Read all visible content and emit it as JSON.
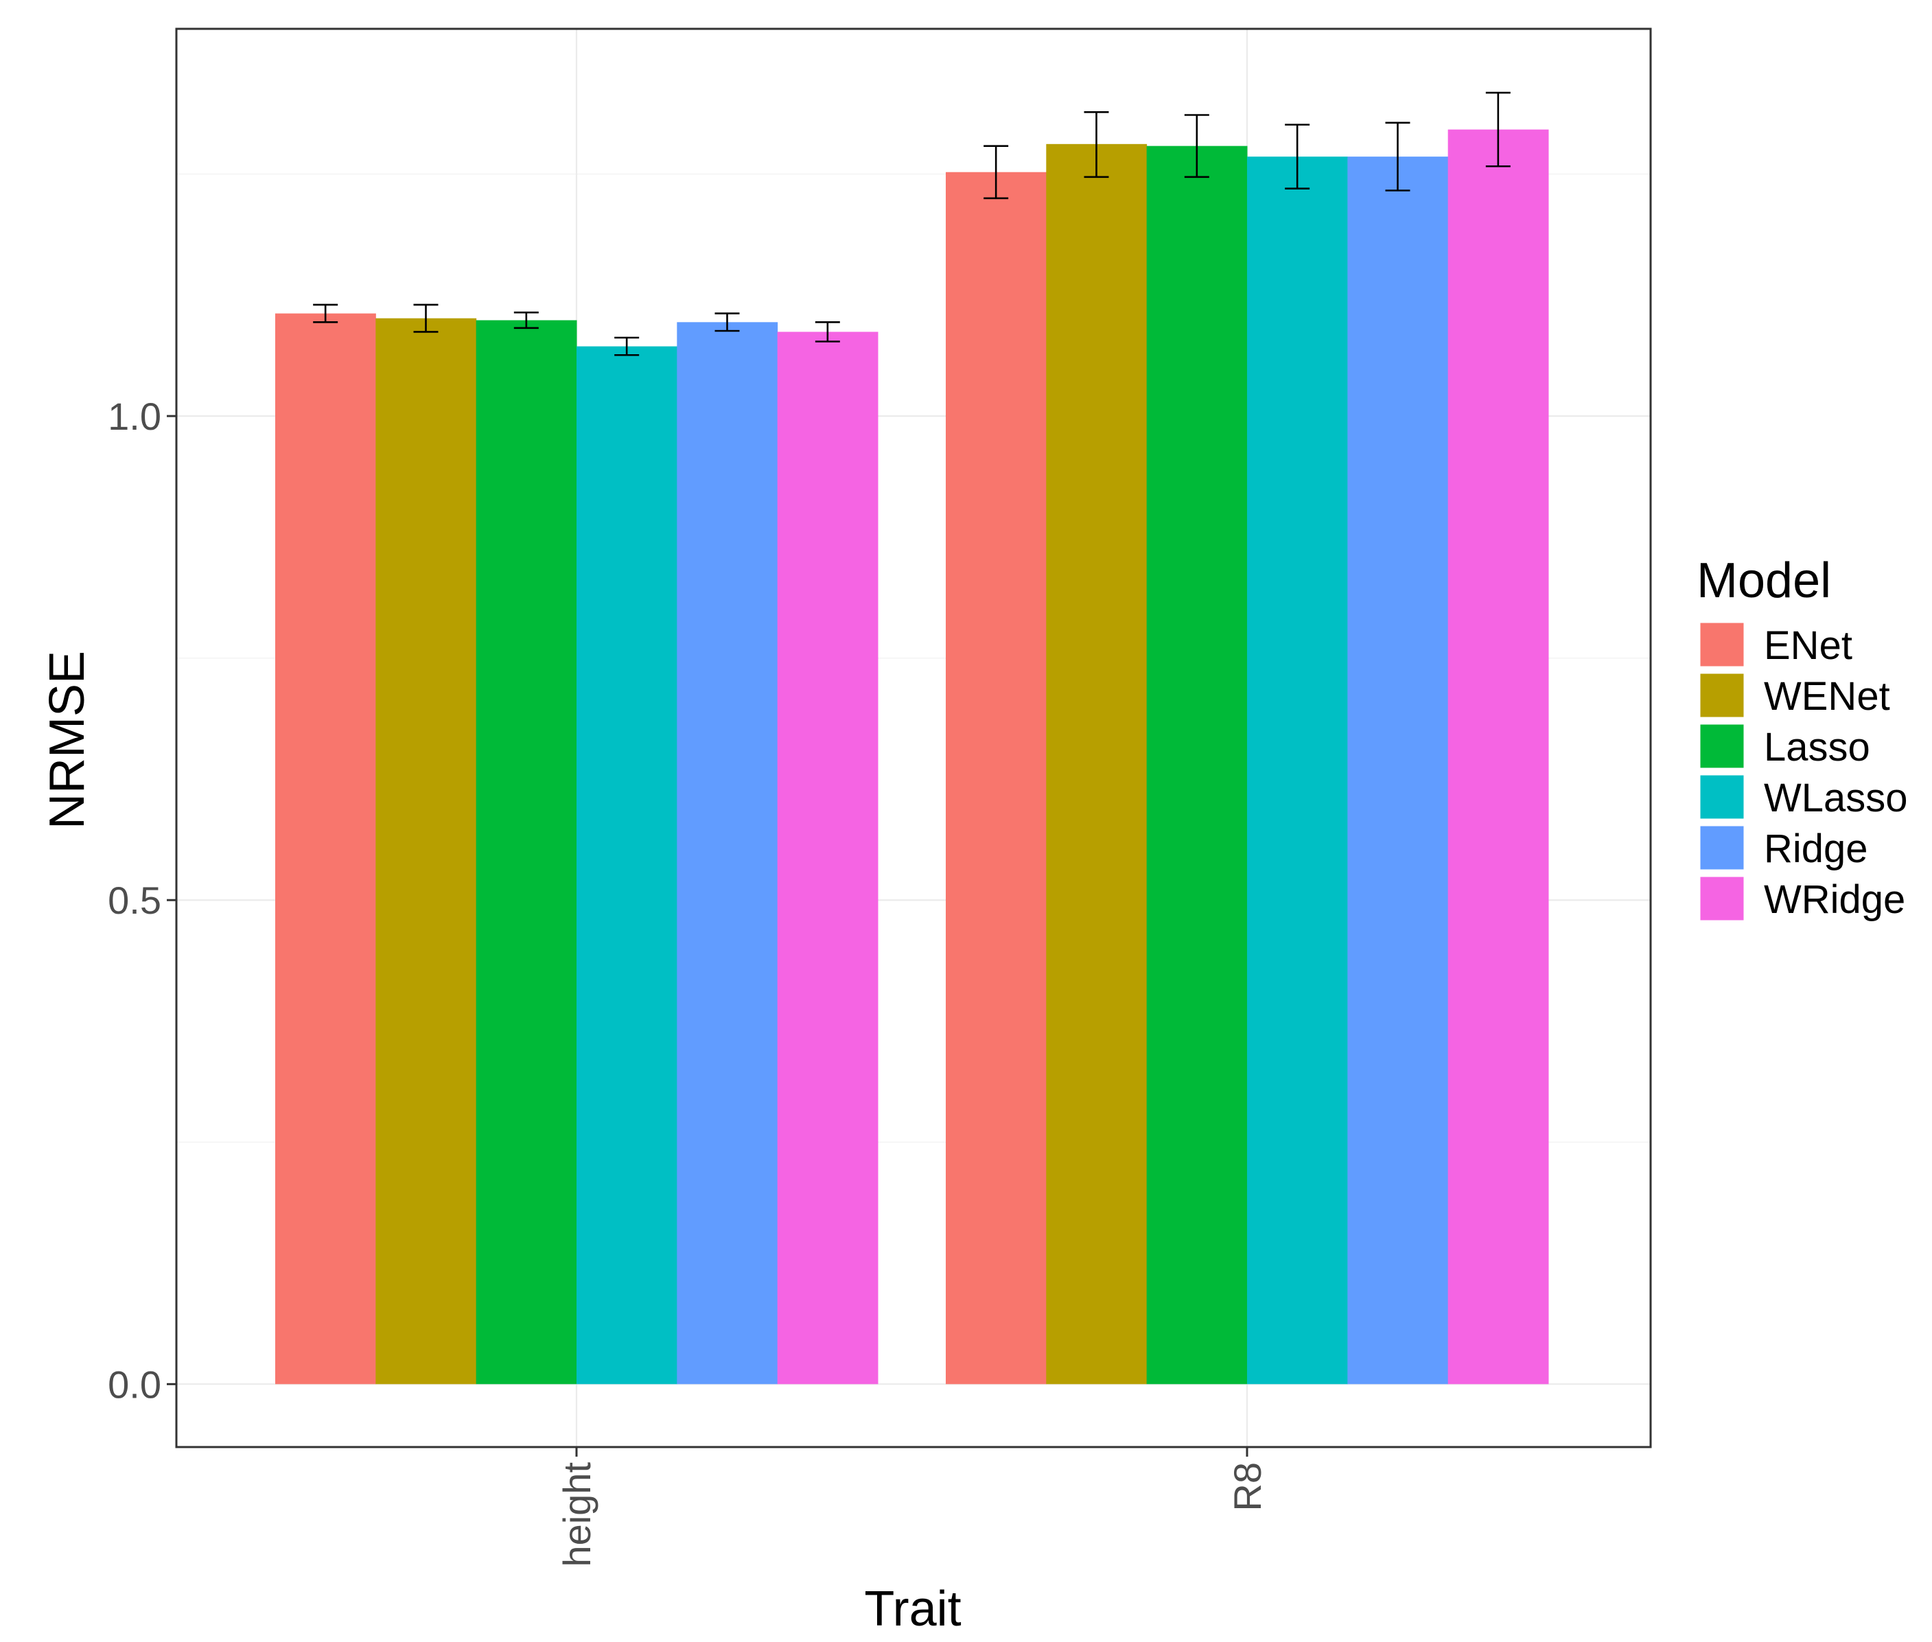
{
  "chart_data": {
    "type": "bar",
    "title": "",
    "xlabel": "Trait",
    "ylabel": "NRMSE",
    "categories": [
      "height",
      "R8"
    ],
    "ylim": [
      -0.065,
      1.4
    ],
    "yticks": [
      "0.0",
      "0.5",
      "1.0"
    ],
    "ytick_values": [
      0.0,
      0.5,
      1.0
    ],
    "grid": true,
    "legend": {
      "title": "Model",
      "position": "right"
    },
    "series": [
      {
        "name": "ENet",
        "color": "#F8766D",
        "values": [
          1.106,
          1.252
        ],
        "err_low": [
          1.097,
          1.225
        ],
        "err_high": [
          1.115,
          1.279
        ]
      },
      {
        "name": "WENet",
        "color": "#B79F00",
        "values": [
          1.101,
          1.281
        ],
        "err_low": [
          1.087,
          1.247
        ],
        "err_high": [
          1.115,
          1.314
        ]
      },
      {
        "name": "Lasso",
        "color": "#00BA38",
        "values": [
          1.099,
          1.279
        ],
        "err_low": [
          1.091,
          1.247
        ],
        "err_high": [
          1.107,
          1.311
        ]
      },
      {
        "name": "WLasso",
        "color": "#00BFC4",
        "values": [
          1.072,
          1.268
        ],
        "err_low": [
          1.063,
          1.235
        ],
        "err_high": [
          1.081,
          1.301
        ]
      },
      {
        "name": "Ridge",
        "color": "#619CFF",
        "values": [
          1.097,
          1.268
        ],
        "err_low": [
          1.088,
          1.233
        ],
        "err_high": [
          1.106,
          1.303
        ]
      },
      {
        "name": "WRidge",
        "color": "#F564E3",
        "values": [
          1.087,
          1.296
        ],
        "err_low": [
          1.077,
          1.258
        ],
        "err_high": [
          1.097,
          1.334
        ]
      }
    ]
  }
}
